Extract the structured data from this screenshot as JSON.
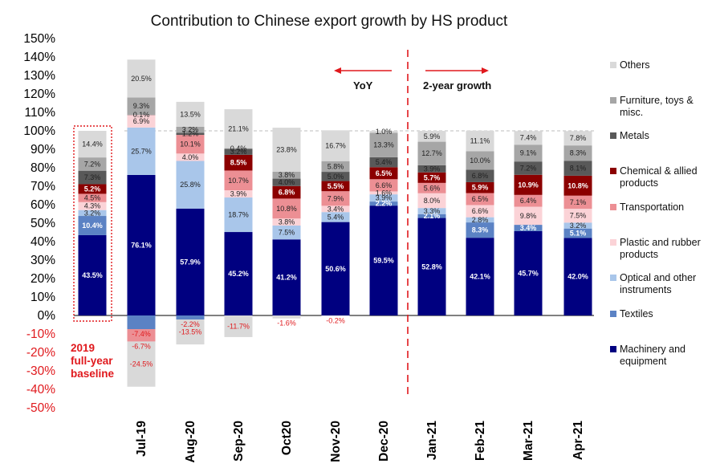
{
  "chart_data": {
    "type": "bar",
    "stacked": true,
    "title": "Contribution to Chinese export growth by HS product",
    "categories": [
      "2019",
      "Jul-19",
      "Aug-20",
      "Sep-20",
      "Oct20",
      "Nov-20",
      "Dec-20",
      "Jan-21",
      "Feb-21",
      "Mar-21",
      "Apr-21"
    ],
    "category_labels": [
      "",
      "Jul-19",
      "Aug-20",
      "Sep-20",
      "Oct20",
      "Nov-20",
      "Dec-20",
      "Jan-21",
      "Feb-21",
      "Mar-21",
      "Apr-21"
    ],
    "ylim": [
      -50,
      150
    ],
    "yticks": [
      -50,
      -40,
      -30,
      -20,
      -10,
      0,
      10,
      20,
      30,
      40,
      50,
      60,
      70,
      80,
      90,
      100,
      110,
      120,
      130,
      140,
      150
    ],
    "ytick_labels": [
      "-50%",
      "-40%",
      "-30%",
      "-20%",
      "-10%",
      "0%",
      "10%",
      "20%",
      "30%",
      "40%",
      "50%",
      "60%",
      "70%",
      "80%",
      "90%",
      "100%",
      "110%",
      "120%",
      "130%",
      "140%",
      "150%"
    ],
    "reference_line": 100,
    "series": [
      {
        "name": "Machinery and equipment",
        "color": "#000080",
        "label_style": "white",
        "values": [
          43.5,
          76.1,
          57.9,
          45.2,
          41.2,
          50.6,
          59.5,
          52.8,
          42.1,
          45.7,
          42.0
        ],
        "labels": [
          "43.5%",
          "76.1%",
          "57.9%",
          "45.2%",
          "41.2%",
          "50.6%",
          "59.5%",
          "52.8%",
          "42.1%",
          "45.7%",
          "42.0%"
        ]
      },
      {
        "name": "Textiles",
        "color": "#5b82c4",
        "label_style": "white",
        "values": [
          10.4,
          -7.4,
          -2.2,
          0,
          0,
          0,
          2.2,
          2.1,
          8.3,
          3.4,
          5.1
        ],
        "labels": [
          "10.4%",
          "-7.4%",
          "-2.2%",
          "",
          "",
          "",
          "2.2%",
          "2.1%",
          "8.3%",
          "3.4%",
          "5.1%"
        ]
      },
      {
        "name": "Optical and other instruments",
        "color": "#a9c6ea",
        "label_style": "dark",
        "values": [
          3.2,
          25.7,
          25.8,
          18.7,
          7.5,
          5.4,
          3.9,
          3.3,
          2.8,
          0,
          3.2
        ],
        "labels": [
          "3.2%",
          "25.7%",
          "25.8%",
          "18.7%",
          "7.5%",
          "5.4%",
          "3.9%",
          "3.3%",
          "2.8%",
          "",
          "3.2%"
        ]
      },
      {
        "name": "Plastic and rubber products",
        "color": "#fbd3d7",
        "label_style": "dark",
        "values": [
          4.3,
          6.9,
          4.0,
          3.9,
          3.8,
          3.4,
          1.6,
          8.0,
          6.6,
          9.8,
          7.5
        ],
        "labels": [
          "4.3%",
          "6.9%",
          "4.0%",
          "3.9%",
          "3.8%",
          "3.4%",
          "1.6%",
          "8.0%",
          "6.6%",
          "9.8%",
          "7.5%"
        ]
      },
      {
        "name": "Transportation",
        "color": "#ec8f94",
        "label_style": "dark",
        "values": [
          4.5,
          -6.7,
          10.1,
          10.7,
          10.8,
          7.9,
          6.6,
          5.6,
          6.5,
          6.4,
          7.1
        ],
        "labels": [
          "4.5%",
          "-6.7%",
          "10.1%",
          "10.7%",
          "10.8%",
          "7.9%",
          "6.6%",
          "5.6%",
          "6.5%",
          "6.4%",
          "7.1%"
        ]
      },
      {
        "name": "Chemical & allied products",
        "color": "#8b0000",
        "label_style": "white",
        "values": [
          5.2,
          0,
          0,
          8.5,
          6.8,
          5.5,
          6.5,
          5.7,
          5.9,
          10.9,
          10.8
        ],
        "labels": [
          "5.2%",
          "",
          "",
          "8.5%",
          "6.8%",
          "5.5%",
          "6.5%",
          "5.7%",
          "5.9%",
          "10.9%",
          "10.8%"
        ]
      },
      {
        "name": "Metals",
        "color": "#595959",
        "label_style": "dark",
        "values": [
          7.3,
          0.1,
          1.2,
          3.2,
          4.0,
          5.0,
          5.4,
          3.9,
          6.8,
          7.2,
          8.1
        ],
        "labels": [
          "7.3%",
          "0.1%",
          "1.2%",
          "3.2%",
          "4.0%",
          "5.0%",
          "5.4%",
          "3.9%",
          "6.8%",
          "7.2%",
          "8.1%"
        ]
      },
      {
        "name": "Furniture, toys & misc.",
        "color": "#a6a6a6",
        "label_style": "dark",
        "values": [
          7.2,
          9.3,
          3.2,
          0.4,
          3.8,
          5.8,
          13.3,
          12.7,
          10.0,
          9.1,
          8.3
        ],
        "labels": [
          "7.2%",
          "9.3%",
          "3.2%",
          "0.4%",
          "3.8%",
          "5.8%",
          "13.3%",
          "12.7%",
          "10.0%",
          "9.1%",
          "8.3%"
        ]
      },
      {
        "name": "Others",
        "color": "#d9d9d9",
        "label_style": "dark",
        "values": [
          14.4,
          20.5,
          13.5,
          21.1,
          23.8,
          16.7,
          1.0,
          5.9,
          11.1,
          7.4,
          7.8
        ],
        "labels": [
          "14.4%",
          "20.5%",
          "13.5%",
          "21.1%",
          "23.8%",
          "16.7%",
          "1.0%",
          "5.9%",
          "11.1%",
          "7.4%",
          "7.8%"
        ]
      }
    ],
    "negative_extras": [
      {
        "category": "Jul-19",
        "series": "Others",
        "value": -24.5,
        "label": "-24.5%"
      },
      {
        "category": "Aug-20",
        "series": "Others",
        "value": -13.5,
        "label": "-13.5%"
      },
      {
        "category": "Sep-20",
        "series": "Others",
        "value": -11.7,
        "label": "-11.7%"
      },
      {
        "category": "Oct20",
        "series": "Others",
        "value": -1.6,
        "label": "-1.6%"
      },
      {
        "category": "Nov-20",
        "series": "Others",
        "value": -0.2,
        "label": "-0.2%"
      }
    ],
    "legend": [
      "Others",
      "Furniture, toys & misc.",
      "Metals",
      "Chemical & allied products",
      "Transportation",
      "Plastic and rubber products",
      "Optical and other instruments",
      "Textiles",
      "Machinery and equipment"
    ],
    "annotations": {
      "yoy": "YoY",
      "two_year": "2-year growth",
      "baseline": [
        "2019",
        "full-year",
        "baseline"
      ]
    }
  }
}
